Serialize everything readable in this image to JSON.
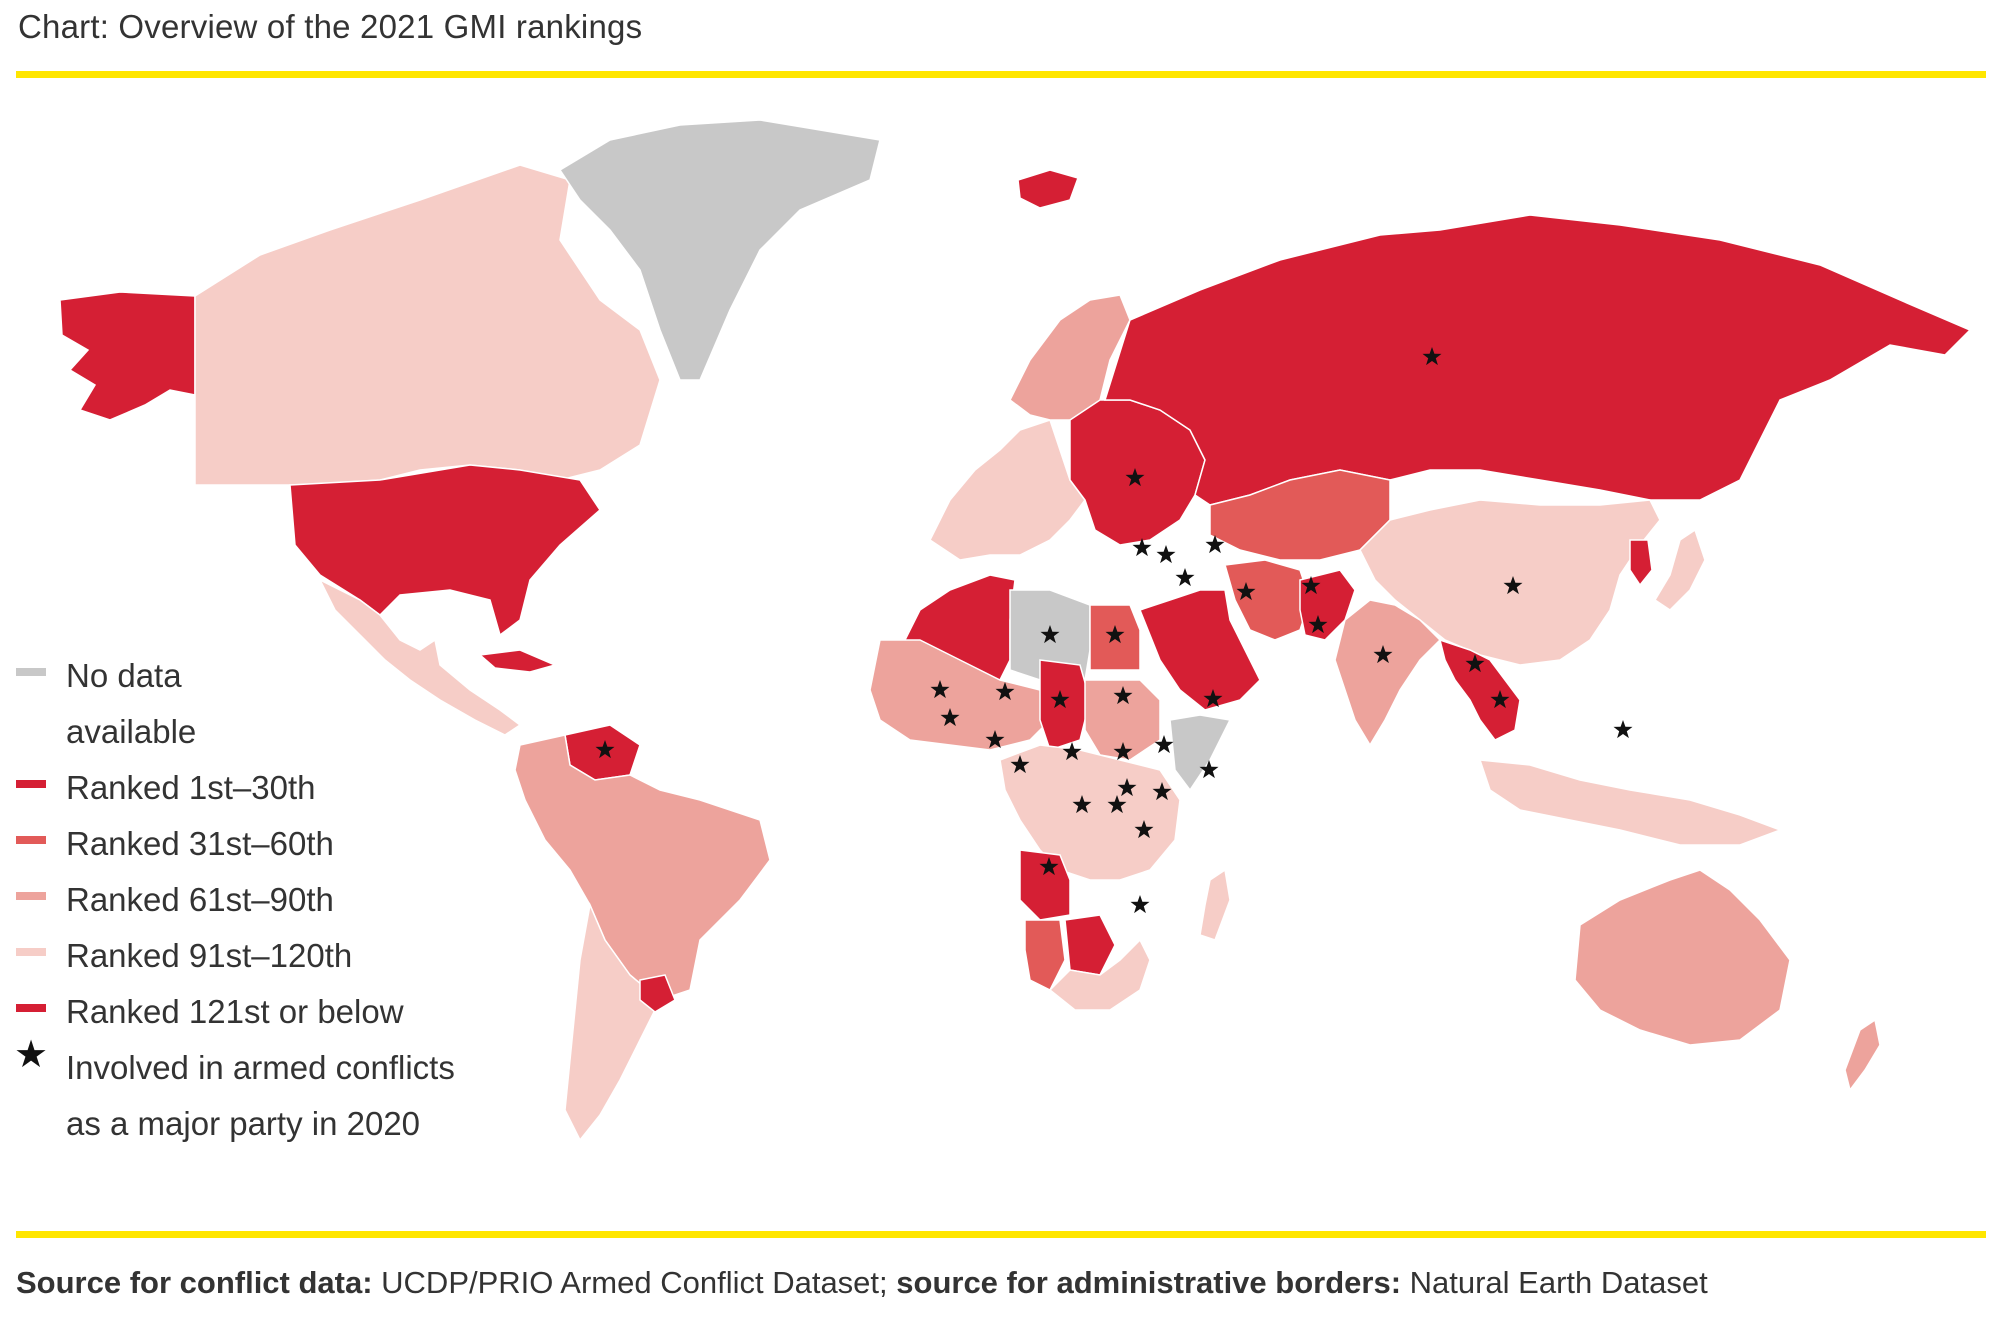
{
  "title": "Chart: Overview of the 2021 GMI rankings",
  "colors": {
    "rule": "#ffe600",
    "no_data": "#c8c8c8",
    "rank_1_30": "#d51f34",
    "rank_31_60": "#e25a58",
    "rank_61_90": "#eda39c",
    "rank_91_120": "#f6cdc7",
    "rank_121_below": "#d51f34",
    "conflict_star": "#111111"
  },
  "legend": [
    {
      "key": "no_data",
      "label": "No data available"
    },
    {
      "key": "rank_1_30",
      "label": "Ranked 1st–30th"
    },
    {
      "key": "rank_31_60",
      "label": "Ranked 31st–60th"
    },
    {
      "key": "rank_61_90",
      "label": "Ranked 61st–90th"
    },
    {
      "key": "rank_91_120",
      "label": "Ranked 91st–120th"
    },
    {
      "key": "rank_121_below",
      "label": "Ranked 121st or below"
    },
    {
      "key": "conflict",
      "label": "Involved in armed conflicts as a major party in 2020",
      "icon": "star-icon"
    }
  ],
  "regions": [
    {
      "name": "Alaska",
      "category": "rank_1_30"
    },
    {
      "name": "Canada",
      "category": "rank_91_120"
    },
    {
      "name": "Greenland",
      "category": "no_data"
    },
    {
      "name": "United States",
      "category": "rank_1_30"
    },
    {
      "name": "Mexico and Central America",
      "category": "rank_91_120"
    },
    {
      "name": "Cuba",
      "category": "rank_1_30"
    },
    {
      "name": "Venezuela",
      "category": "rank_1_30"
    },
    {
      "name": "South America",
      "category": "rank_61_90"
    },
    {
      "name": "Argentina and Chile",
      "category": "rank_91_120"
    },
    {
      "name": "Uruguay",
      "category": "rank_1_30"
    },
    {
      "name": "Iceland",
      "category": "rank_1_30"
    },
    {
      "name": "Western Europe",
      "category": "rank_91_120"
    },
    {
      "name": "Scandinavia",
      "category": "rank_61_90"
    },
    {
      "name": "Eastern Europe",
      "category": "rank_1_30"
    },
    {
      "name": "Russia",
      "category": "rank_1_30"
    },
    {
      "name": "Central Asia",
      "category": "rank_31_60"
    },
    {
      "name": "China",
      "category": "rank_91_120"
    },
    {
      "name": "Korea",
      "category": "rank_1_30"
    },
    {
      "name": "Japan",
      "category": "rank_91_120"
    },
    {
      "name": "North Africa",
      "category": "rank_1_30"
    },
    {
      "name": "Libya",
      "category": "no_data"
    },
    {
      "name": "Egypt",
      "category": "rank_31_60"
    },
    {
      "name": "Middle East",
      "category": "rank_1_30"
    },
    {
      "name": "Iran",
      "category": "rank_31_60"
    },
    {
      "name": "Pakistan",
      "category": "rank_1_30"
    },
    {
      "name": "India",
      "category": "rank_61_90"
    },
    {
      "name": "Myanmar and Indochina",
      "category": "rank_1_30"
    },
    {
      "name": "Sahel",
      "category": "rank_61_90"
    },
    {
      "name": "Chad",
      "category": "rank_1_30"
    },
    {
      "name": "Sudan",
      "category": "rank_61_90"
    },
    {
      "name": "Somalia",
      "category": "no_data"
    },
    {
      "name": "Central Africa",
      "category": "rank_91_120"
    },
    {
      "name": "Angola",
      "category": "rank_1_30"
    },
    {
      "name": "Namibia",
      "category": "rank_31_60"
    },
    {
      "name": "Botswana",
      "category": "rank_1_30"
    },
    {
      "name": "Southern Africa",
      "category": "rank_91_120"
    },
    {
      "name": "Madagascar",
      "category": "rank_91_120"
    },
    {
      "name": "Southeast Asia",
      "category": "rank_91_120"
    },
    {
      "name": "Australia",
      "category": "rank_61_90"
    },
    {
      "name": "New Zealand",
      "category": "rank_61_90"
    }
  ],
  "source": {
    "label1": "Source for conflict data:",
    "text1": " UCDP/PRIO Armed Conflict Dataset; ",
    "label2": "source for administrative borders:",
    "text2": " Natural Earth Dataset"
  }
}
